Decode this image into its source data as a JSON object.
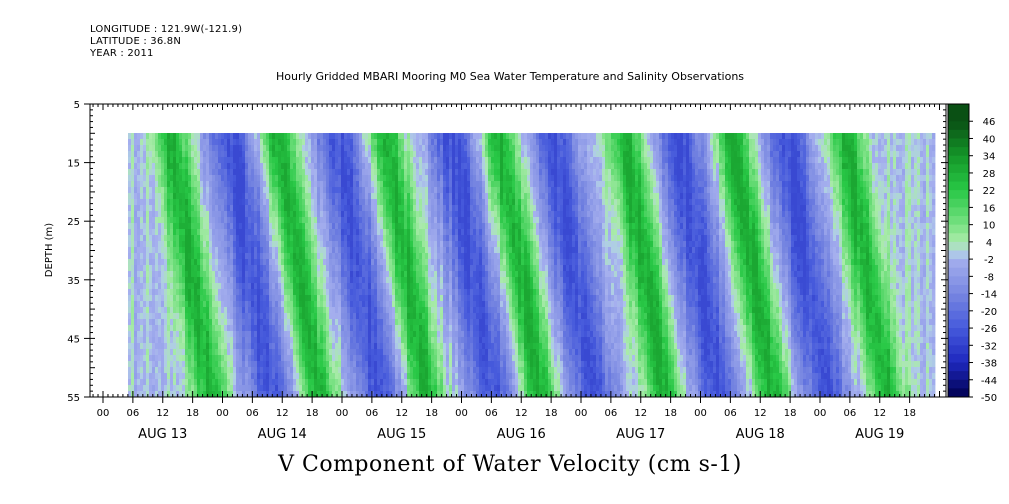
{
  "header": {
    "longitude": "LONGITUDE : 121.9W(-121.9)",
    "latitude": "LATITUDE : 36.8N",
    "year": "YEAR : 2011"
  },
  "title": "Hourly Gridded MBARI Mooring M0 Sea Water Temperature and Salinity Observations",
  "chart_data": {
    "type": "heatmap",
    "title": "Hourly Gridded MBARI Mooring M0 Sea Water Temperature and Salinity Observations",
    "xlabel": "V Component of Water Velocity (cm s-1)",
    "ylabel": "DEPTH (m)",
    "ylim": [
      5,
      55
    ],
    "y_inverted": true,
    "y_ticks": [
      5,
      15,
      25,
      35,
      45,
      55
    ],
    "x_hour_ticks": [
      "00",
      "06",
      "12",
      "18",
      "00",
      "06",
      "12",
      "18",
      "00",
      "06",
      "12",
      "18",
      "00",
      "06",
      "12",
      "18",
      "00",
      "06",
      "12",
      "18",
      "00",
      "06",
      "12",
      "18",
      "00",
      "06",
      "12",
      "18"
    ],
    "x_day_labels": [
      "AUG 13",
      "AUG 14",
      "AUG 15",
      "AUG 16",
      "AUG 17",
      "AUG 18",
      "AUG 19"
    ],
    "data_depth_range": [
      10,
      55
    ],
    "colorbar": {
      "labels": [
        "46",
        "40",
        "34",
        "28",
        "22",
        "16",
        "10",
        "4",
        "-2",
        "-8",
        "-14",
        "-20",
        "-26",
        "-32",
        "-38",
        "-44",
        "-50"
      ],
      "range": [
        -50,
        52
      ]
    },
    "pattern": {
      "description_days": "columns = hours from AUG 12 21:00 to AUG 19 23:00",
      "positive_streaks_day_offsets": [
        0.55,
        1.45,
        2.35,
        3.3,
        4.35,
        5.25,
        6.2
      ],
      "negative_streaks_day_offsets": [
        1.05,
        1.95,
        2.9,
        3.75,
        4.8,
        5.7
      ],
      "max_value": 28,
      "min_value": -28
    }
  }
}
